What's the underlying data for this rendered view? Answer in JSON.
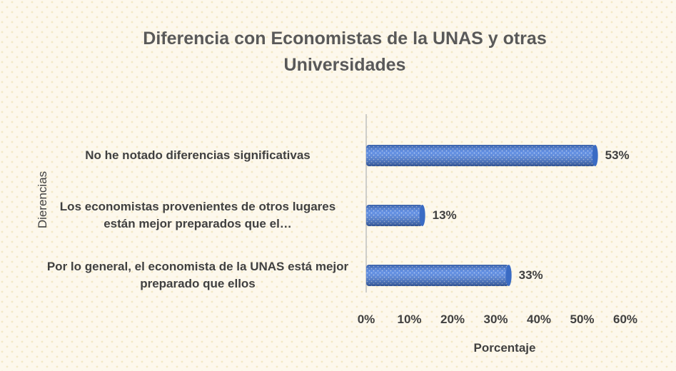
{
  "chart_data": {
    "type": "hbar",
    "title": "Diferencia con Economistas de la UNAS y otras Universidades",
    "x_label": "Porcentaje",
    "y_label": "Dierencias",
    "categories": [
      "No he notado diferencias significativas",
      "Los economistas provenientes de otros lugares están mejor preparados que el…",
      "Por lo general, el economista de la UNAS está mejor preparado que ellos"
    ],
    "values": [
      53,
      13,
      33
    ],
    "value_labels": [
      "53%",
      "13%",
      "33%"
    ],
    "color": "#4a7fe0",
    "xlim": [
      0,
      60
    ],
    "xticks": [
      {
        "value": 0,
        "label": "0%"
      },
      {
        "value": 10,
        "label": "10%"
      },
      {
        "value": 20,
        "label": "20%"
      },
      {
        "value": 30,
        "label": "30%"
      },
      {
        "value": 40,
        "label": "40%"
      },
      {
        "value": 50,
        "label": "50%"
      },
      {
        "value": 60,
        "label": "60%"
      }
    ]
  }
}
